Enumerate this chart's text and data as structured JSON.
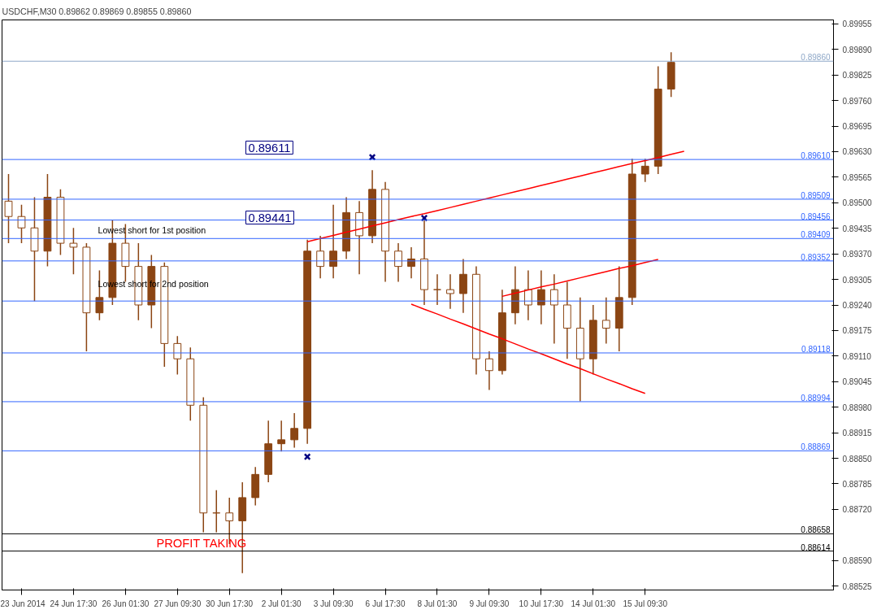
{
  "chart_data": {
    "type": "candlestick",
    "title": "USDCHF,M30  0.89862 0.89869 0.89855 0.89860",
    "color": "#8b4513",
    "categories": [
      null,
      "23 Jun 2014",
      null,
      null,
      null,
      "24 Jun 17:30",
      null,
      null,
      null,
      "26 Jun 01:30",
      null,
      null,
      null,
      "27 Jun 09:30",
      null,
      null,
      null,
      "30 Jun 17:30",
      null,
      null,
      null,
      "2 Jul 01:30",
      null,
      null,
      null,
      "3 Jul 09:30",
      null,
      null,
      null,
      "6 Jul 17:30",
      null,
      null,
      null,
      "8 Jul 01:30",
      null,
      null,
      null,
      "9 Jul 09:30",
      null,
      null,
      null,
      "10 Jul 17:30",
      null,
      null,
      null,
      "14 Jul 01:30",
      null,
      null,
      null,
      "15 Jul 09:30",
      null,
      null,
      null,
      null,
      null,
      null,
      null,
      null,
      null,
      null,
      null,
      null,
      null,
      null
    ],
    "ohlc": [
      [
        0.89504,
        0.89573,
        0.89397,
        0.89465
      ],
      [
        0.89465,
        0.89495,
        0.89397,
        0.89436
      ],
      [
        0.89436,
        0.89514,
        0.8925,
        0.89377
      ],
      [
        0.89377,
        0.89573,
        0.89338,
        0.89514
      ],
      [
        0.89514,
        0.89534,
        0.89367,
        0.89397
      ],
      [
        0.89397,
        0.89436,
        0.89318,
        0.89387
      ],
      [
        0.89387,
        0.89397,
        0.89122,
        0.8922
      ],
      [
        0.8922,
        0.89328,
        0.89201,
        0.89259
      ],
      [
        0.89259,
        0.89455,
        0.8924,
        0.89397
      ],
      [
        0.89397,
        0.89446,
        0.89299,
        0.89338
      ],
      [
        0.89338,
        0.89397,
        0.89201,
        0.8924
      ],
      [
        0.8924,
        0.89367,
        0.89181,
        0.89338
      ],
      [
        0.89338,
        0.89348,
        0.89083,
        0.89142
      ],
      [
        0.89142,
        0.89161,
        0.89063,
        0.89103
      ],
      [
        0.89103,
        0.89132,
        0.88946,
        0.88985
      ],
      [
        0.88985,
        0.89005,
        0.88662,
        0.88711
      ],
      [
        0.88711,
        0.88769,
        0.88662,
        0.88711
      ],
      [
        0.88711,
        0.8875,
        0.88632,
        0.88691
      ],
      [
        0.88691,
        0.88789,
        0.88558,
        0.8875
      ],
      [
        0.8875,
        0.88828,
        0.8873,
        0.88809
      ],
      [
        0.88809,
        0.88946,
        0.88789,
        0.88887
      ],
      [
        0.88887,
        0.88946,
        0.88867,
        0.88897
      ],
      [
        0.88897,
        0.88965,
        0.88877,
        0.88926
      ],
      [
        0.88926,
        0.89406,
        0.88887,
        0.89377
      ],
      [
        0.89377,
        0.89416,
        0.89308,
        0.89338
      ],
      [
        0.89338,
        0.89495,
        0.89308,
        0.89377
      ],
      [
        0.89377,
        0.89514,
        0.89357,
        0.89475
      ],
      [
        0.89475,
        0.89504,
        0.89318,
        0.89416
      ],
      [
        0.89416,
        0.89583,
        0.89397,
        0.89534
      ],
      [
        0.89534,
        0.89553,
        0.89299,
        0.89377
      ],
      [
        0.89377,
        0.89397,
        0.89299,
        0.89338
      ],
      [
        0.89338,
        0.89387,
        0.89308,
        0.89357
      ],
      [
        0.89357,
        0.89455,
        0.8924,
        0.89279
      ],
      [
        0.89279,
        0.89318,
        0.8924,
        0.89279
      ],
      [
        0.89279,
        0.89318,
        0.8923,
        0.89269
      ],
      [
        0.89269,
        0.89357,
        0.8922,
        0.89318
      ],
      [
        0.89318,
        0.89338,
        0.89063,
        0.89103
      ],
      [
        0.89103,
        0.89122,
        0.89024,
        0.89073
      ],
      [
        0.89073,
        0.89279,
        0.89063,
        0.8922
      ],
      [
        0.8922,
        0.89338,
        0.89191,
        0.89279
      ],
      [
        0.89279,
        0.89328,
        0.89201,
        0.8924
      ],
      [
        0.8924,
        0.89328,
        0.89191,
        0.89279
      ],
      [
        0.89279,
        0.89318,
        0.89142,
        0.8924
      ],
      [
        0.8924,
        0.89299,
        0.89103,
        0.89181
      ],
      [
        0.89181,
        0.89259,
        0.88995,
        0.89103
      ],
      [
        0.89103,
        0.8924,
        0.89063,
        0.89201
      ],
      [
        0.89201,
        0.89259,
        0.89142,
        0.89181
      ],
      [
        0.89181,
        0.89338,
        0.89122,
        0.89259
      ],
      [
        0.89259,
        0.89612,
        0.8924,
        0.89573
      ],
      [
        0.89573,
        0.89612,
        0.89553,
        0.89593
      ],
      [
        0.89593,
        0.89847,
        0.89573,
        0.89789
      ],
      [
        0.89789,
        0.89883,
        0.89769,
        0.89857
      ],
      null,
      null,
      null,
      null,
      null,
      null,
      null,
      null,
      null,
      null,
      null,
      null
    ],
    "ylim": [
      0.88515,
      0.89965
    ],
    "yticks": [
      {
        "value": 0.89955,
        "label": "0.89955"
      },
      {
        "value": 0.8989,
        "label": "0.89890"
      },
      {
        "value": 0.89825,
        "label": "0.89825"
      },
      {
        "value": 0.8976,
        "label": "0.89760"
      },
      {
        "value": 0.89695,
        "label": "0.89695"
      },
      {
        "value": 0.8963,
        "label": "0.89630"
      },
      {
        "value": 0.89565,
        "label": "0.89565"
      },
      {
        "value": 0.895,
        "label": "0.89500"
      },
      {
        "value": 0.89435,
        "label": "0.89435"
      },
      {
        "value": 0.8937,
        "label": "0.89370"
      },
      {
        "value": 0.89305,
        "label": "0.89305"
      },
      {
        "value": 0.8924,
        "label": "0.89240"
      },
      {
        "value": 0.89175,
        "label": "0.89175"
      },
      {
        "value": 0.8911,
        "label": "0.89110"
      },
      {
        "value": 0.89045,
        "label": "0.89045"
      },
      {
        "value": 0.8898,
        "label": "0.88980"
      },
      {
        "value": 0.88915,
        "label": "0.88915"
      },
      {
        "value": 0.8885,
        "label": "0.88850"
      },
      {
        "value": 0.88785,
        "label": "0.88785"
      },
      {
        "value": 0.8872,
        "label": "0.88720"
      },
      {
        "value": 0.8859,
        "label": "0.88590"
      },
      {
        "value": 0.88525,
        "label": "0.88525"
      }
    ],
    "series": [
      {
        "type": "line",
        "color": "#ff0000",
        "values": [
          null,
          null,
          null,
          null,
          null,
          null,
          null,
          null,
          null,
          null,
          null,
          null,
          null,
          null,
          null,
          null,
          null,
          null,
          null,
          null,
          null,
          null,
          null,
          0.89401,
          0.89409,
          0.89417,
          0.89425,
          0.89433,
          0.89441,
          0.89449,
          0.89457,
          0.89465,
          0.89472,
          0.8948,
          0.89488,
          0.89496,
          0.89504,
          0.89512,
          0.8952,
          0.89528,
          0.89536,
          0.89544,
          0.89552,
          0.8956,
          0.89568,
          0.89576,
          0.89584,
          0.89592,
          0.896,
          0.89607,
          0.89615,
          0.89623,
          0.89631,
          null,
          null,
          null,
          null,
          null,
          null,
          null,
          null,
          null,
          null,
          null
        ]
      },
      {
        "type": "line",
        "color": "#ff0000",
        "values": [
          null,
          null,
          null,
          null,
          null,
          null,
          null,
          null,
          null,
          null,
          null,
          null,
          null,
          null,
          null,
          null,
          null,
          null,
          null,
          null,
          null,
          null,
          null,
          null,
          null,
          null,
          null,
          null,
          null,
          null,
          null,
          null,
          null,
          null,
          null,
          null,
          null,
          null,
          0.89262,
          0.8927,
          0.89278,
          0.89286,
          0.89293,
          0.89301,
          0.89309,
          0.89317,
          0.89325,
          0.89333,
          0.8934,
          0.89348,
          0.89356,
          null,
          null,
          null,
          null,
          null,
          null,
          null,
          null,
          null,
          null,
          null,
          null,
          null
        ]
      },
      {
        "type": "line",
        "color": "#ff0000",
        "values": [
          null,
          null,
          null,
          null,
          null,
          null,
          null,
          null,
          null,
          null,
          null,
          null,
          null,
          null,
          null,
          null,
          null,
          null,
          null,
          null,
          null,
          null,
          null,
          null,
          null,
          null,
          null,
          null,
          null,
          null,
          null,
          0.89242,
          0.89229,
          0.89217,
          0.89204,
          0.89192,
          0.89179,
          0.89166,
          0.89154,
          0.89141,
          0.89128,
          0.89116,
          0.89103,
          0.8909,
          0.89078,
          0.89065,
          0.89052,
          0.8904,
          0.89027,
          0.89015,
          null,
          null,
          null,
          null,
          null,
          null,
          null,
          null,
          null,
          null,
          null,
          null,
          null,
          null
        ]
      },
      {
        "type": "scatter",
        "marker": "cross",
        "color": "#000080",
        "values": [
          null,
          null,
          null,
          null,
          null,
          null,
          null,
          null,
          null,
          null,
          null,
          null,
          null,
          null,
          null,
          null,
          null,
          null,
          null,
          null,
          null,
          null,
          null,
          0.88854,
          null,
          null,
          null,
          null,
          0.89616,
          null,
          null,
          null,
          0.89461,
          null,
          null,
          null,
          null,
          null,
          null,
          null,
          null,
          null,
          null,
          null,
          null,
          null,
          null,
          null,
          null,
          null,
          null,
          null,
          null,
          null,
          null,
          null,
          null,
          null,
          null,
          null,
          null,
          null,
          null,
          null
        ]
      }
    ],
    "ref_lines": [
      {
        "axis": "y",
        "value": 0.8986,
        "label": "0.89860",
        "color": "#8fa8c8"
      },
      {
        "axis": "y",
        "value": 0.88658,
        "label": "0.88658",
        "color": "#000000"
      },
      {
        "axis": "y",
        "value": 0.88614,
        "label": "0.88614",
        "color": "#000000"
      },
      {
        "axis": "y",
        "value": 0.8961,
        "label": "0.89610",
        "color": "#3366ff"
      },
      {
        "axis": "y",
        "value": 0.89509,
        "label": "0.89509",
        "color": "#3366ff"
      },
      {
        "axis": "y",
        "value": 0.89456,
        "label": "0.89456",
        "color": "#3366ff"
      },
      {
        "axis": "y",
        "value": 0.89409,
        "label": "0.89409",
        "color": "#3366ff"
      },
      {
        "axis": "y",
        "value": 0.89352,
        "label": "0.89352",
        "color": "#3366ff"
      },
      {
        "axis": "y",
        "value": 0.8925,
        "label": null,
        "color": "#3366ff"
      },
      {
        "axis": "y",
        "value": 0.89118,
        "label": "0.89118",
        "color": "#3366ff"
      },
      {
        "axis": "y",
        "value": 0.88994,
        "label": "0.88994",
        "color": "#3366ff"
      },
      {
        "axis": "y",
        "value": 0.88869,
        "label": "0.88869",
        "color": "#3366ff"
      }
    ],
    "annotations": [
      "0.89611",
      "0.89441",
      "Lowest short for 1st position",
      "Lowest short for 2nd position",
      "PROFIT TAKING"
    ],
    "grid": false
  }
}
